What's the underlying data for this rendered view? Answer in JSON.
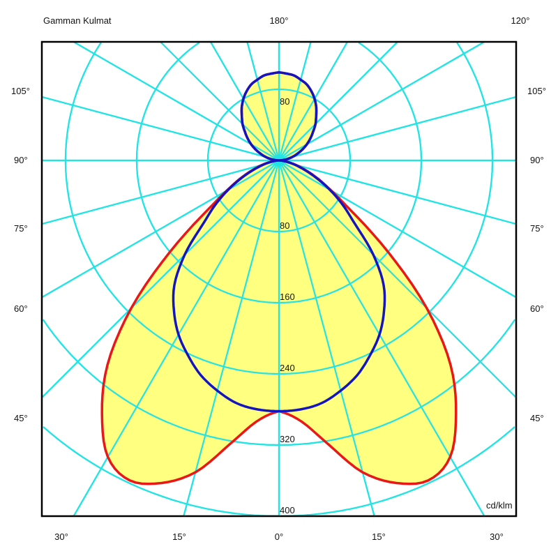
{
  "chart_data": {
    "type": "polar",
    "title": "Gamman Kulmat",
    "unit": "cd/klm",
    "radial_ticks": [
      80,
      160,
      240,
      320,
      400
    ],
    "upper_radial_tick": "80",
    "radial_max_shown": 400,
    "angular_step_deg": 15,
    "grid": true,
    "top_labels": {
      "left": "Gamman Kulmat",
      "center": "180°",
      "right": "120°"
    },
    "side_labels": [
      "105°",
      "90°",
      "75°",
      "60°",
      "45°"
    ],
    "bottom_labels": [
      "30°",
      "15°",
      "0°",
      "15°",
      "30°"
    ],
    "angles": [
      0,
      5,
      10,
      15,
      20,
      25,
      30,
      35,
      40,
      45,
      50,
      55,
      60,
      65,
      70,
      75,
      80,
      85,
      90,
      95,
      100,
      105,
      110,
      115,
      120,
      125,
      130,
      135,
      140,
      145,
      150,
      155,
      160,
      165,
      170,
      175,
      180
    ],
    "series": [
      {
        "color": "#e81818",
        "values": [
          282,
          295,
          325,
          363,
          386,
          397,
          385,
          347,
          300,
          235,
          160,
          100,
          68,
          48,
          32,
          20,
          10,
          4,
          0,
          4,
          10,
          16,
          22,
          29,
          36,
          43,
          50,
          58,
          65,
          73,
          80,
          86,
          91,
          94,
          97,
          98,
          99
        ]
      },
      {
        "color": "#1414c0",
        "values": [
          282,
          281,
          277,
          268,
          257,
          242,
          226,
          206,
          183,
          150,
          112,
          88,
          66,
          46,
          30,
          18,
          9,
          3,
          0,
          4,
          10,
          16,
          22,
          29,
          36,
          43,
          50,
          58,
          65,
          73,
          80,
          86,
          91,
          94,
          97,
          98,
          99
        ]
      }
    ],
    "fill_color": "#ffff80",
    "grid_color": "#22e4e4"
  }
}
